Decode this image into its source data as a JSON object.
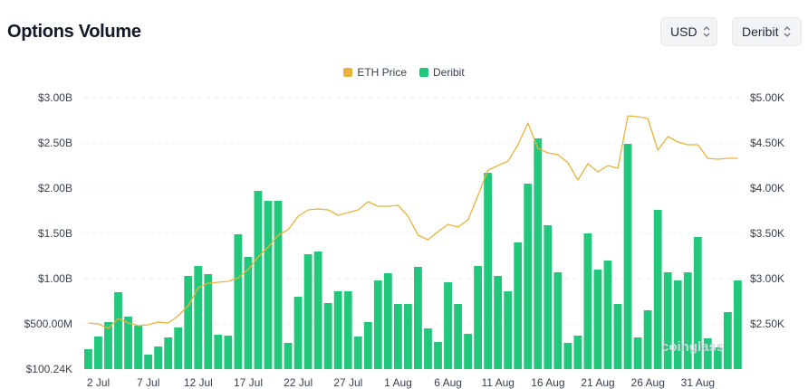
{
  "header": {
    "title": "Options Volume"
  },
  "controls": {
    "currency": "USD",
    "exchange": "Deribit"
  },
  "watermark": "coinglass",
  "colors": {
    "eth_price": "#E8B339",
    "deribit": "#21C77A"
  },
  "chart_data": {
    "type": "bar",
    "legend": [
      "ETH Price",
      "Deribit"
    ],
    "x_tick_labels": [
      "2 Jul",
      "7 Jul",
      "12 Jul",
      "17 Jul",
      "22 Jul",
      "27 Jul",
      "1 Aug",
      "6 Aug",
      "11 Aug",
      "16 Aug",
      "21 Aug",
      "26 Aug",
      "31 Aug"
    ],
    "y_left_tick_labels": [
      "$100.24K",
      "$500.00M",
      "$1.00B",
      "$1.50B",
      "$2.00B",
      "$2.50B",
      "$3.00B"
    ],
    "y_right_tick_labels": [
      "$2.50K",
      "$3.00K",
      "$3.50K",
      "$4.00K",
      "$4.50K",
      "$5.00K"
    ],
    "ylim_left": [
      0,
      3.0
    ],
    "ylim_right": [
      2000,
      5000
    ],
    "series": [
      {
        "name": "Deribit",
        "kind": "bar",
        "unit": "USD billions",
        "values": [
          0.22,
          0.36,
          0.52,
          0.85,
          0.58,
          0.48,
          0.16,
          0.25,
          0.35,
          0.46,
          1.03,
          1.14,
          1.05,
          0.38,
          0.37,
          1.49,
          1.24,
          1.97,
          1.86,
          1.86,
          0.29,
          0.8,
          1.27,
          1.3,
          0.73,
          0.86,
          0.86,
          0.36,
          0.52,
          0.98,
          1.06,
          0.72,
          0.72,
          1.13,
          0.45,
          0.3,
          0.96,
          0.72,
          0.39,
          1.14,
          2.17,
          1.03,
          0.86,
          1.4,
          2.05,
          2.55,
          1.59,
          1.07,
          0.29,
          0.37,
          1.5,
          1.1,
          1.2,
          0.72,
          2.49,
          0.35,
          0.65,
          1.76,
          1.07,
          0.98,
          1.07,
          1.46,
          0.34,
          0.24,
          0.63,
          0.98
        ]
      },
      {
        "name": "ETH Price",
        "kind": "line",
        "unit": "USD",
        "values": [
          2510,
          2500,
          2450,
          2560,
          2510,
          2480,
          2490,
          2520,
          2510,
          2590,
          2700,
          2900,
          2950,
          2960,
          2970,
          3010,
          3100,
          3240,
          3350,
          3480,
          3540,
          3690,
          3760,
          3770,
          3760,
          3700,
          3730,
          3760,
          3850,
          3800,
          3800,
          3810,
          3690,
          3480,
          3430,
          3520,
          3600,
          3570,
          3650,
          3920,
          4200,
          4250,
          4300,
          4480,
          4720,
          4440,
          4390,
          4370,
          4280,
          4090,
          4270,
          4180,
          4250,
          4220,
          4800,
          4790,
          4770,
          4420,
          4570,
          4510,
          4480,
          4480,
          4330,
          4320,
          4330,
          4330
        ]
      }
    ]
  }
}
